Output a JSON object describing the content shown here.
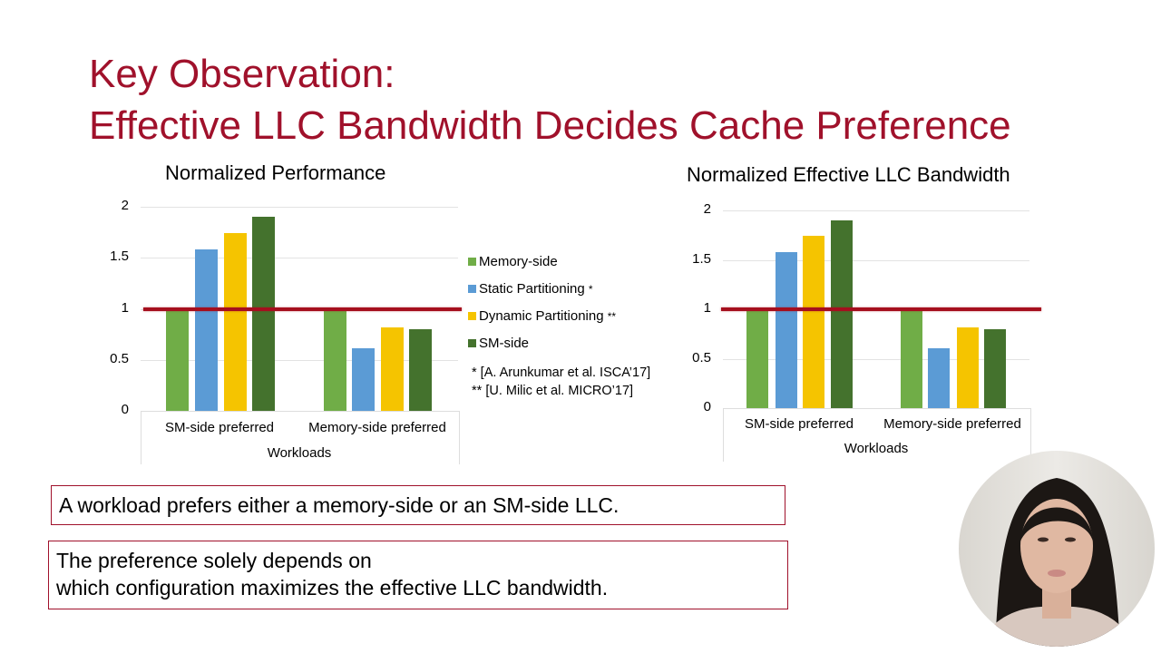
{
  "title": {
    "line1": "Key Observation:",
    "line2": "Effective LLC Bandwidth Decides Cache Preference"
  },
  "colors": {
    "title": "#a0112b",
    "memory_side": "#70ad47",
    "static": "#5b9bd5",
    "dynamic": "#f5c400",
    "sm_side": "#44722d",
    "reference_line": "#a50f1e"
  },
  "legend": {
    "items": [
      {
        "label": "Memory-side",
        "color": "#70ad47"
      },
      {
        "label": "Static Partitioning",
        "mark": "*",
        "color": "#5b9bd5"
      },
      {
        "label": "Dynamic Partitioning",
        "mark": "**",
        "color": "#f5c400"
      },
      {
        "label": "SM-side",
        "color": "#44722d"
      }
    ],
    "footnotes": [
      "* [A. Arunkumar et al. ISCA’17]",
      "** [U. Milic et al. MICRO’17]"
    ]
  },
  "chart_data": [
    {
      "type": "bar",
      "title": "Normalized Performance",
      "xlabel": "Workloads",
      "ylabel": "",
      "categories": [
        "SM-side preferred",
        "Memory-side preferred"
      ],
      "yticks": [
        "0",
        "0.5",
        "1",
        "1.5",
        "2"
      ],
      "ylim": [
        0,
        2
      ],
      "grid": true,
      "reference_line": 1,
      "legend_position": "right",
      "series": [
        {
          "name": "Memory-side",
          "values": [
            1.0,
            1.0
          ]
        },
        {
          "name": "Static Partitioning",
          "values": [
            1.58,
            0.61
          ]
        },
        {
          "name": "Dynamic Partitioning",
          "values": [
            1.74,
            0.82
          ]
        },
        {
          "name": "SM-side",
          "values": [
            1.9,
            0.8
          ]
        }
      ]
    },
    {
      "type": "bar",
      "title": "Normalized Effective LLC Bandwidth",
      "xlabel": "Workloads",
      "ylabel": "",
      "categories": [
        "SM-side preferred",
        "Memory-side preferred"
      ],
      "yticks": [
        "0",
        "0.5",
        "1",
        "1.5",
        "2"
      ],
      "ylim": [
        0,
        2
      ],
      "grid": true,
      "reference_line": 1,
      "series": [
        {
          "name": "Memory-side",
          "values": [
            1.0,
            1.0
          ]
        },
        {
          "name": "Static Partitioning",
          "values": [
            1.58,
            0.61
          ]
        },
        {
          "name": "Dynamic Partitioning",
          "values": [
            1.74,
            0.82
          ]
        },
        {
          "name": "SM-side",
          "values": [
            1.9,
            0.8
          ]
        }
      ]
    }
  ],
  "callouts": [
    "A workload prefers either a memory-side or an SM-side LLC.",
    "The preference solely depends on",
    "which configuration maximizes the effective LLC bandwidth."
  ]
}
